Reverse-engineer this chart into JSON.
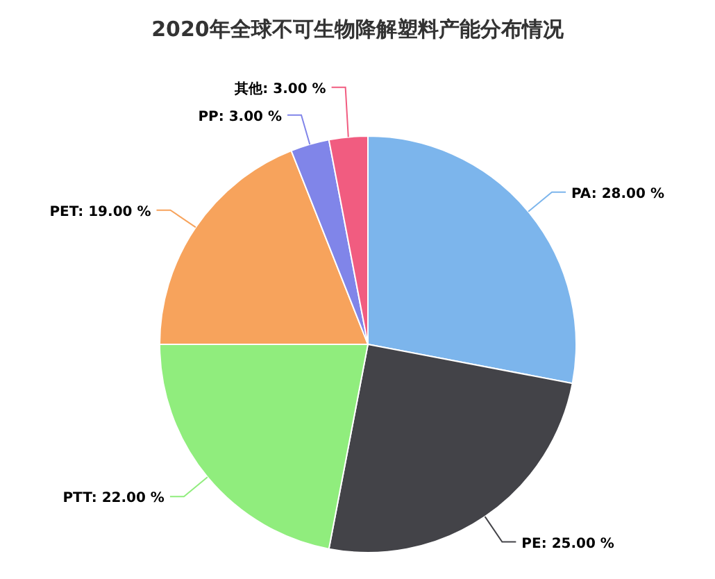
{
  "chart_data": {
    "type": "pie",
    "title": "2020年全球不可生物降解塑料产能分布情况",
    "categories": [
      "PA",
      "PE",
      "PTT",
      "PET",
      "PP",
      "其他"
    ],
    "values": [
      28,
      25,
      22,
      19,
      3,
      3
    ],
    "value_labels": [
      "28.00 %",
      "25.00 %",
      "22.00 %",
      "19.00 %",
      "3.00 %",
      "3.00 %"
    ],
    "colors": [
      "#7cb5ec",
      "#434348",
      "#90ed7d",
      "#f7a35c",
      "#8085e9",
      "#f15c80"
    ]
  }
}
